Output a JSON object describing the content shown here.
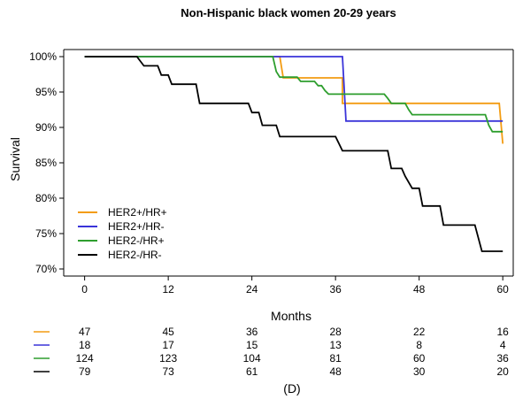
{
  "chart_data": {
    "type": "line",
    "title": "Non-Hispanic black women 20-29 years",
    "xlabel": "Months",
    "ylabel": "Survival",
    "xlim": [
      -3,
      61.5
    ],
    "ylim": [
      69,
      101
    ],
    "xticks": [
      0,
      12,
      24,
      36,
      48,
      60
    ],
    "xtick_labels": [
      "0",
      "12",
      "24",
      "36",
      "48",
      "60"
    ],
    "yticks": [
      70,
      75,
      80,
      85,
      90,
      95,
      100
    ],
    "ytick_labels": [
      "70%",
      "75%",
      "80%",
      "85%",
      "90%",
      "95%",
      "100%"
    ],
    "grid": false,
    "legend_position": "bottom-left",
    "panel_label": "(D)",
    "series": [
      {
        "name": "HER2+/HR+",
        "color": "#f39c12",
        "points": [
          [
            0,
            100
          ],
          [
            28,
            100
          ],
          [
            28.5,
            97
          ],
          [
            37,
            97
          ],
          [
            37,
            93.4
          ],
          [
            59.5,
            93.4
          ],
          [
            60,
            87.7
          ]
        ]
      },
      {
        "name": "HER2+/HR-",
        "color": "#3a34d9",
        "points": [
          [
            0,
            100
          ],
          [
            37,
            100
          ],
          [
            37.5,
            90.9
          ],
          [
            60,
            90.9
          ]
        ]
      },
      {
        "name": "HER2-/HR+",
        "color": "#2e9e2e",
        "points": [
          [
            0,
            100
          ],
          [
            27,
            100
          ],
          [
            27.5,
            97.9
          ],
          [
            28,
            97.1
          ],
          [
            30.5,
            97.1
          ],
          [
            31,
            96.5
          ],
          [
            33,
            96.5
          ],
          [
            33.5,
            95.9
          ],
          [
            34,
            95.9
          ],
          [
            34.5,
            95.2
          ],
          [
            35,
            94.7
          ],
          [
            43,
            94.7
          ],
          [
            43.5,
            94.1
          ],
          [
            44,
            93.4
          ],
          [
            46,
            93.4
          ],
          [
            46.5,
            92.5
          ],
          [
            47,
            91.8
          ],
          [
            57.5,
            91.8
          ],
          [
            58,
            90.3
          ],
          [
            58.5,
            89.4
          ],
          [
            60,
            89.4
          ]
        ]
      },
      {
        "name": "HER2-/HR-",
        "color": "#000000",
        "points": [
          [
            0,
            100
          ],
          [
            7.5,
            100
          ],
          [
            8.5,
            98.7
          ],
          [
            10.5,
            98.7
          ],
          [
            11,
            97.4
          ],
          [
            12,
            97.4
          ],
          [
            12.5,
            96.1
          ],
          [
            16,
            96.1
          ],
          [
            16.5,
            93.4
          ],
          [
            23.5,
            93.4
          ],
          [
            24,
            92.1
          ],
          [
            25,
            92.1
          ],
          [
            25.5,
            90.3
          ],
          [
            27.5,
            90.3
          ],
          [
            28,
            88.7
          ],
          [
            36,
            88.7
          ],
          [
            37,
            86.7
          ],
          [
            43.5,
            86.7
          ],
          [
            44,
            84.2
          ],
          [
            45.5,
            84.2
          ],
          [
            46,
            83.1
          ],
          [
            47,
            81.4
          ],
          [
            48,
            81.4
          ],
          [
            48.5,
            78.9
          ],
          [
            51,
            78.9
          ],
          [
            51.5,
            76.2
          ],
          [
            56,
            76.2
          ],
          [
            57,
            72.5
          ],
          [
            60,
            72.5
          ]
        ]
      }
    ],
    "risk_table": {
      "times": [
        0,
        12,
        24,
        36,
        48,
        60
      ],
      "rows": [
        {
          "series": "HER2+/HR+",
          "color": "#f39c12",
          "counts": [
            "47",
            "45",
            "36",
            "28",
            "22",
            "16"
          ]
        },
        {
          "series": "HER2+/HR-",
          "color": "#3a34d9",
          "counts": [
            "18",
            "17",
            "15",
            "13",
            "8",
            "4"
          ]
        },
        {
          "series": "HER2-/HR+",
          "color": "#2e9e2e",
          "counts": [
            "124",
            "123",
            "104",
            "81",
            "60",
            "36"
          ]
        },
        {
          "series": "HER2-/HR-",
          "color": "#000000",
          "counts": [
            "79",
            "73",
            "61",
            "48",
            "30",
            "20"
          ]
        }
      ]
    }
  }
}
